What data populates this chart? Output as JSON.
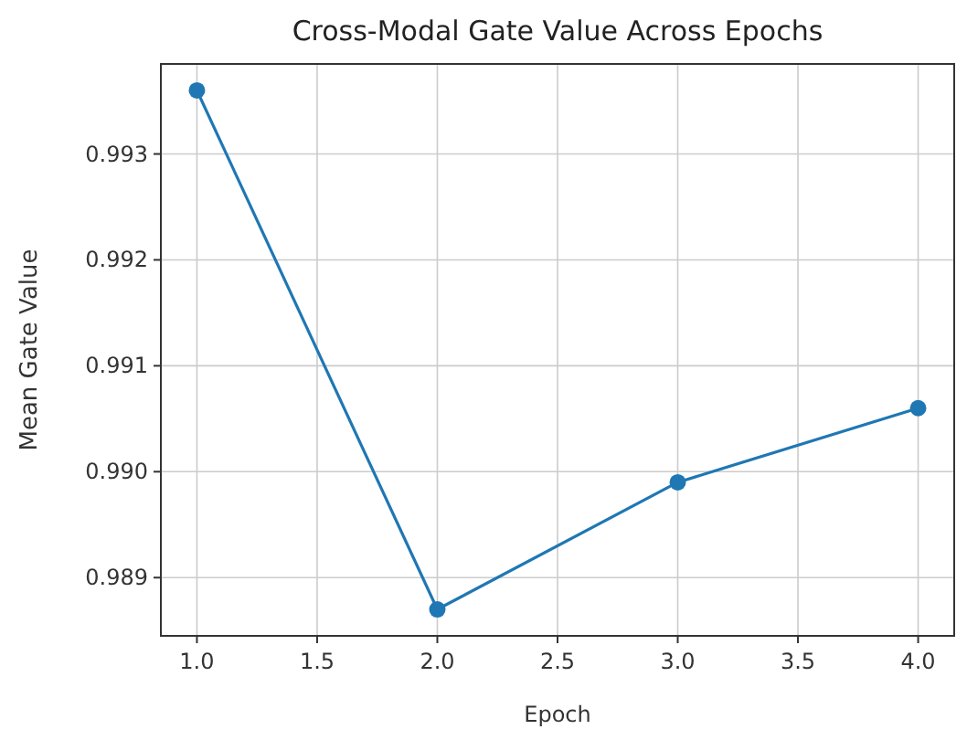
{
  "chart_data": {
    "type": "line",
    "title": "Cross-Modal Gate Value Across Epochs",
    "xlabel": "Epoch",
    "ylabel": "Mean Gate Value",
    "x": [
      1,
      2,
      3,
      4
    ],
    "series": [
      {
        "color": "#1f77b4",
        "values": [
          0.9936,
          0.9887,
          0.9899,
          0.9906
        ]
      }
    ],
    "xlim": [
      0.85,
      4.15
    ],
    "xticks": [
      {
        "value": 1,
        "label": "1.0"
      },
      {
        "value": 1.5,
        "label": "1.5"
      },
      {
        "value": 2,
        "label": "2.0"
      },
      {
        "value": 2.5,
        "label": "2.5"
      },
      {
        "value": 3,
        "label": "3.0"
      },
      {
        "value": 3.5,
        "label": "3.5"
      },
      {
        "value": 4,
        "label": "4.0"
      }
    ],
    "ylim": [
      0.98845,
      0.99385
    ],
    "yticks": [
      0.989,
      {
        "value": 0.99,
        "label": "0.990"
      },
      0.991,
      0.992,
      0.993
    ],
    "grid": true,
    "marker": "circle",
    "line_style": "solid"
  }
}
